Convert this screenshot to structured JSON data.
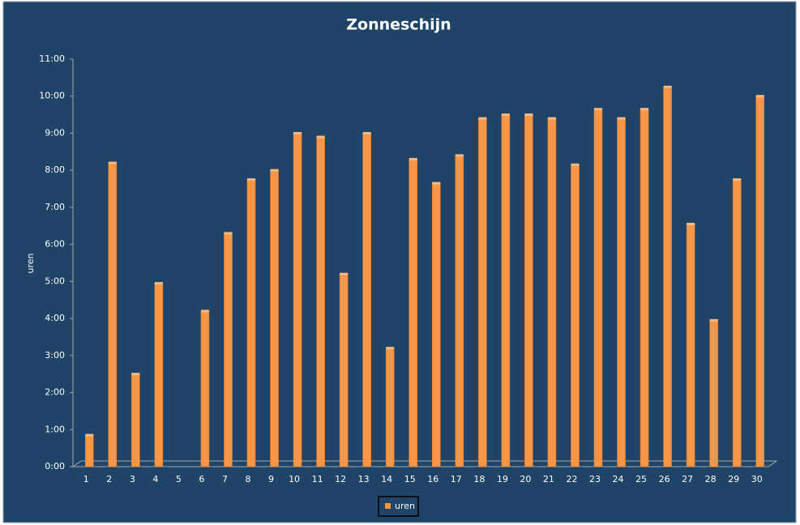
{
  "chart_data": {
    "type": "bar",
    "title": "Zonneschijn",
    "y_label": "uren",
    "categories": [
      "1",
      "2",
      "3",
      "4",
      "5",
      "6",
      "7",
      "8",
      "9",
      "10",
      "11",
      "12",
      "13",
      "14",
      "15",
      "16",
      "17",
      "18",
      "19",
      "20",
      "21",
      "22",
      "23",
      "24",
      "25",
      "26",
      "27",
      "28",
      "29",
      "30"
    ],
    "series": [
      {
        "name": "uren",
        "color": "#f79646",
        "values": [
          0.85,
          8.2,
          2.5,
          4.95,
          0,
          4.2,
          6.3,
          7.75,
          8.0,
          9.0,
          8.9,
          5.2,
          9.0,
          3.2,
          8.3,
          7.65,
          8.4,
          9.4,
          9.5,
          9.5,
          9.4,
          8.15,
          9.65,
          9.4,
          9.65,
          10.25,
          6.55,
          3.95,
          7.75,
          10.0
        ]
      }
    ],
    "ylim": [
      0,
      11
    ],
    "yticks": [
      {
        "value": 0,
        "label": "0:00"
      },
      {
        "value": 1,
        "label": "1:00"
      },
      {
        "value": 2,
        "label": "2:00"
      },
      {
        "value": 3,
        "label": "3:00"
      },
      {
        "value": 4,
        "label": "4:00"
      },
      {
        "value": 5,
        "label": "5:00"
      },
      {
        "value": 6,
        "label": "6:00"
      },
      {
        "value": 7,
        "label": "7:00"
      },
      {
        "value": 8,
        "label": "8:00"
      },
      {
        "value": 9,
        "label": "9:00"
      },
      {
        "value": 10,
        "label": "10:00"
      },
      {
        "value": 11,
        "label": "11:00"
      }
    ],
    "grid": false,
    "legend": "bottom"
  }
}
